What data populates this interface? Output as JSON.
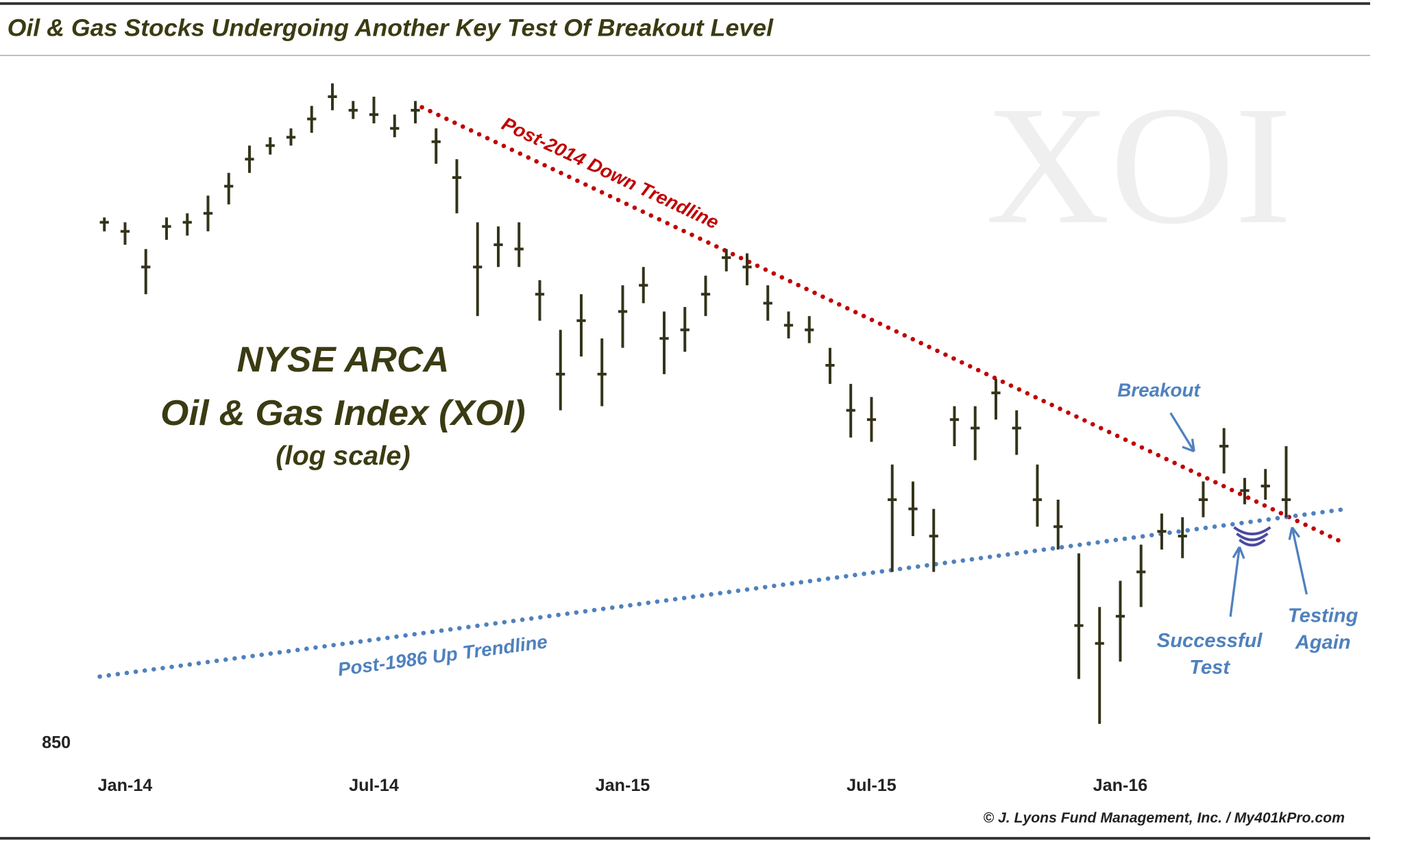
{
  "chart_data": {
    "type": "candlestick",
    "title": "Oil & Gas Stocks Undergoing Another Key Test Of Breakout Level",
    "watermark": "XOI",
    "annotations": [
      "NYSE ARCA",
      "Oil & Gas Index (XOI)",
      "(log scale)",
      "Post-2014 Down Trendline",
      "Post-1986 Up Trendline",
      "Breakout",
      "Successful",
      "Test",
      "Testing",
      "Again"
    ],
    "source": "© J. Lyons Fund Management, Inc. / My401kPro.com",
    "color": "#33331a",
    "log_scale": true,
    "x": [
      -0.5,
      0,
      0.5,
      1,
      1.5,
      2,
      2.5,
      3,
      3.5,
      4,
      4.5,
      5,
      5.5,
      6,
      6.5,
      7,
      7.5,
      8,
      8.5,
      9,
      9.5,
      10,
      10.5,
      11,
      11.5,
      12,
      12.5,
      13,
      13.5,
      14,
      14.5,
      15,
      15.5,
      16,
      16.5,
      17,
      17.5,
      18,
      18.5,
      19,
      19.5,
      20,
      20.5,
      21,
      21.5,
      22,
      22.5,
      23,
      23.5,
      24,
      24.5,
      25,
      25.5,
      26,
      26.5,
      27,
      27.5,
      28
    ],
    "values": [
      1435,
      1422,
      1372,
      1429,
      1435,
      1448,
      1488,
      1529,
      1550,
      1563,
      1592,
      1628,
      1606,
      1599,
      1577,
      1606,
      1556,
      1501,
      1372,
      1403,
      1397,
      1335,
      1232,
      1300,
      1232,
      1312,
      1347,
      1277,
      1288,
      1335,
      1385,
      1372,
      1323,
      1294,
      1288,
      1243,
      1188,
      1177,
      1086,
      1076,
      1047,
      1177,
      1167,
      1209,
      1167,
      1086,
      1057,
      957,
      940,
      966,
      1010,
      1052,
      1047,
      1086,
      1146,
      1096,
      1101,
      1086
    ],
    "high": [
      1442,
      1435,
      1397,
      1442,
      1448,
      1474,
      1508,
      1550,
      1563,
      1577,
      1613,
      1650,
      1621,
      1628,
      1599,
      1621,
      1577,
      1529,
      1435,
      1429,
      1435,
      1354,
      1288,
      1335,
      1277,
      1347,
      1372,
      1312,
      1318,
      1360,
      1397,
      1391,
      1347,
      1312,
      1306,
      1265,
      1220,
      1204,
      1125,
      1106,
      1076,
      1193,
      1193,
      1226,
      1188,
      1125,
      1086,
      1029,
      975,
      1001,
      1038,
      1071,
      1067,
      1106,
      1167,
      1110,
      1120,
      1146
    ],
    "low": [
      1422,
      1403,
      1335,
      1410,
      1416,
      1422,
      1461,
      1508,
      1536,
      1550,
      1570,
      1606,
      1592,
      1585,
      1563,
      1585,
      1522,
      1448,
      1306,
      1372,
      1372,
      1300,
      1188,
      1254,
      1193,
      1265,
      1323,
      1232,
      1260,
      1306,
      1366,
      1347,
      1300,
      1277,
      1271,
      1220,
      1156,
      1151,
      1010,
      1047,
      1010,
      1146,
      1130,
      1177,
      1136,
      1057,
      1033,
      907,
      867,
      923,
      975,
      1033,
      1024,
      1067,
      1115,
      1081,
      1086,
      1067
    ],
    "xlim": [
      -1.2,
      29.5
    ],
    "xticks": [
      {
        "value": 0,
        "label": "Jan-14"
      },
      {
        "value": 6,
        "label": "Jul-14"
      },
      {
        "value": 12,
        "label": "Jan-15"
      },
      {
        "value": 18,
        "label": "Jul-15"
      },
      {
        "value": 24,
        "label": "Jan-16"
      }
    ],
    "ylim": [
      850,
      1700
    ],
    "yticks": [
      850
    ]
  }
}
